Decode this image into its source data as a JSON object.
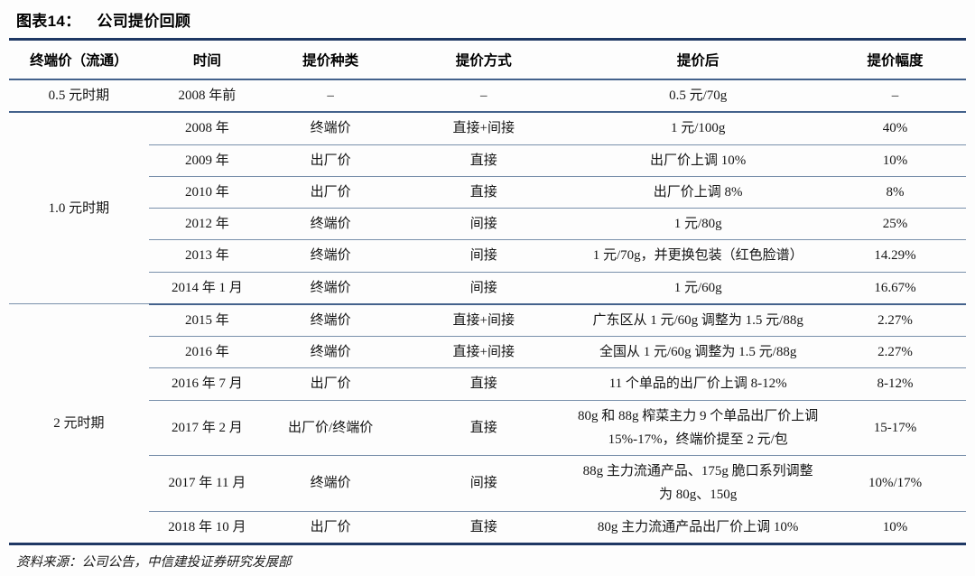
{
  "figure": {
    "label": "图表14：",
    "title": "公司提价回顾"
  },
  "table": {
    "columns": [
      "终端价（流通）",
      "时间",
      "提价种类",
      "提价方式",
      "提价后",
      "提价幅度"
    ],
    "groups": [
      {
        "period": "0.5 元时期",
        "rows": [
          {
            "time": "2008 年前",
            "kind": "–",
            "method": "–",
            "after": "0.5 元/70g",
            "range": "–"
          }
        ]
      },
      {
        "period": "1.0 元时期",
        "rows": [
          {
            "time": "2008 年",
            "kind": "终端价",
            "method": "直接+间接",
            "after": "1 元/100g",
            "range": "40%"
          },
          {
            "time": "2009 年",
            "kind": "出厂价",
            "method": "直接",
            "after": "出厂价上调 10%",
            "range": "10%"
          },
          {
            "time": "2010 年",
            "kind": "出厂价",
            "method": "直接",
            "after": "出厂价上调 8%",
            "range": "8%"
          },
          {
            "time": "2012 年",
            "kind": "终端价",
            "method": "间接",
            "after": "1 元/80g",
            "range": "25%"
          },
          {
            "time": "2013 年",
            "kind": "终端价",
            "method": "间接",
            "after": "1 元/70g，并更换包装（红色脸谱）",
            "range": "14.29%"
          },
          {
            "time": "2014 年 1 月",
            "kind": "终端价",
            "method": "间接",
            "after": "1 元/60g",
            "range": "16.67%"
          }
        ]
      },
      {
        "period": "2 元时期",
        "rows": [
          {
            "time": "2015 年",
            "kind": "终端价",
            "method": "直接+间接",
            "after": "广东区从 1 元/60g 调整为 1.5 元/88g",
            "range": "2.27%"
          },
          {
            "time": "2016 年",
            "kind": "终端价",
            "method": "直接+间接",
            "after": "全国从 1 元/60g 调整为 1.5 元/88g",
            "range": "2.27%"
          },
          {
            "time": "2016 年 7 月",
            "kind": "出厂价",
            "method": "直接",
            "after": "11 个单品的出厂价上调 8-12%",
            "range": "8-12%"
          },
          {
            "time": "2017 年 2 月",
            "kind": "出厂价/终端价",
            "method": "直接",
            "after": "80g 和 88g 榨菜主力 9 个单品出厂价上调 15%-17%，终端价提至 2 元/包",
            "range": "15-17%"
          },
          {
            "time": "2017 年 11 月",
            "kind": "终端价",
            "method": "间接",
            "after": "88g 主力流通产品、175g 脆口系列调整为 80g、150g",
            "range": "10%/17%"
          },
          {
            "time": "2018 年 10 月",
            "kind": "出厂价",
            "method": "直接",
            "after": "80g 主力流通产品出厂价上调 10%",
            "range": "10%"
          }
        ]
      }
    ]
  },
  "source": "资料来源：公司公告，中信建投证券研究发展部",
  "colors": {
    "border_heavy": "#1f3864",
    "border_group": "#44628c",
    "border_light": "#7990ab",
    "text": "#151515"
  }
}
